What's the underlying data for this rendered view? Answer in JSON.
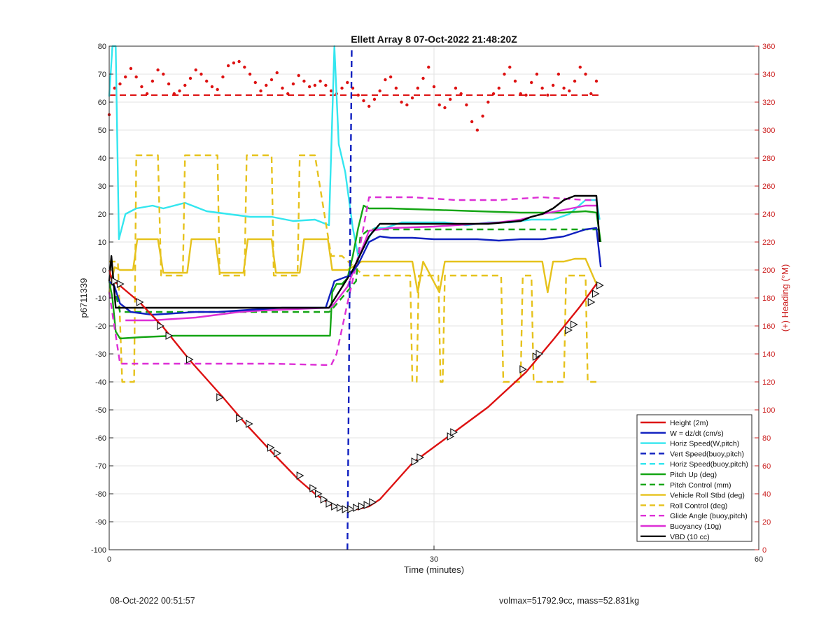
{
  "figure": {
    "footer_left": "08-Oct-2022 00:51:57",
    "footer_right": "volmax=51792.9cc, mass=52.831kg"
  },
  "chart_data": {
    "type": "line",
    "title": "Ellett Array 8 07-Oct-2022 21:48:20Z",
    "xlabel": "Time (minutes)",
    "ylabel": "p6711339",
    "y2label": "(+) Heading (°M)",
    "xlim": [
      0,
      60
    ],
    "ylim": [
      -100,
      80
    ],
    "y2lim": [
      0,
      360
    ],
    "xticks": [
      0,
      30,
      60
    ],
    "yticks": [
      -100,
      -90,
      -80,
      -70,
      -60,
      -50,
      -40,
      -30,
      -20,
      -10,
      0,
      10,
      20,
      30,
      40,
      50,
      60,
      70,
      80
    ],
    "y2ticks": [
      0,
      20,
      40,
      60,
      80,
      100,
      120,
      140,
      160,
      180,
      200,
      220,
      240,
      260,
      280,
      300,
      320,
      340,
      360
    ],
    "grid": true,
    "legend_position": "bottom-right",
    "colors": {
      "red": "#dd1111",
      "blue": "#1020c0",
      "cyan": "#33e6ef",
      "green": "#14a514",
      "gold": "#e6c21c",
      "magenta": "#dd2fd6",
      "black": "#000000",
      "axis_right": "#cc2222"
    },
    "series": [
      {
        "name": "Height (2m)",
        "color": "#dd1111",
        "style": "solid",
        "x": [
          0,
          0.3,
          0.8,
          2.8,
          5,
          7.5,
          10.5,
          12.6,
          15,
          17.5,
          19,
          20.5,
          22,
          23,
          24,
          25,
          28,
          31.5,
          35,
          38.5,
          41,
          43.5,
          45
        ],
        "y": [
          0,
          -4,
          -5,
          -11.5,
          -20.5,
          -32.5,
          -45.5,
          -55,
          -65,
          -75,
          -80,
          -84,
          -85.5,
          -85.5,
          -84.5,
          -82,
          -69,
          -59,
          -49,
          -36.5,
          -25,
          -13,
          -5
        ]
      },
      {
        "name": "W = dz/dt (cm/s)",
        "color": "#1020c0",
        "style": "solid",
        "x": [
          0,
          0.5,
          1,
          2,
          4,
          6,
          8,
          10,
          12,
          14,
          16,
          18,
          20,
          20.8,
          21.5,
          22.2,
          23,
          24,
          25,
          26,
          28,
          30,
          32,
          34,
          36,
          38,
          40,
          42,
          44,
          45,
          45.4
        ],
        "y": [
          -4,
          -6,
          -12,
          -15,
          -16,
          -15.5,
          -15,
          -15,
          -14.5,
          -14,
          -13.5,
          -13.5,
          -13.5,
          -4,
          -3,
          -2,
          2,
          10,
          12,
          11.5,
          11.5,
          11,
          11,
          11,
          10.5,
          11,
          11,
          12,
          14.5,
          15,
          1
        ]
      },
      {
        "name": "Horiz Speed(W,pitch)",
        "color": "#33e6ef",
        "style": "solid",
        "x": [
          0,
          0.3,
          0.6,
          0.9,
          1.5,
          2.5,
          4,
          5,
          6,
          7,
          9,
          11,
          13,
          15,
          17,
          19,
          20.3,
          20.8,
          21.2,
          21.8,
          22.5,
          23,
          23.5,
          24.5,
          25.5,
          27,
          29,
          31,
          33,
          35,
          37,
          39,
          41,
          42.5,
          44,
          45,
          45.3
        ],
        "y": [
          62,
          80,
          80,
          11,
          20,
          22,
          23,
          22,
          23,
          24,
          21,
          20,
          19,
          19,
          17.5,
          18,
          16,
          80,
          45,
          35,
          15,
          5,
          8,
          15,
          15,
          17,
          17,
          17,
          16,
          17,
          17,
          18,
          18,
          20,
          25,
          25,
          18
        ]
      },
      {
        "name": "Vert Speed(buoy,pitch)",
        "color": "#1020c0",
        "style": "dashed",
        "x": [
          22,
          22.4
        ],
        "y": [
          -100,
          80
        ]
      },
      {
        "name": "Horiz Speed(buoy,pitch)",
        "color": "#33e6ef",
        "style": "dashed",
        "x": [],
        "y": []
      },
      {
        "name": "Pitch Up (deg)",
        "color": "#14a514",
        "style": "solid",
        "x": [
          0,
          0.3,
          0.6,
          1,
          3,
          6,
          10,
          14,
          18,
          20.4,
          20.6,
          21,
          21.5,
          22,
          22.5,
          23,
          23.5,
          24,
          26,
          30,
          34,
          38,
          42,
          44,
          45,
          45.4
        ],
        "y": [
          -4,
          -10,
          -22,
          -24.5,
          -24,
          -23.5,
          -23.5,
          -23.5,
          -23.5,
          -23.5,
          -8,
          -5,
          -5,
          -3,
          5,
          15,
          23,
          22,
          22,
          21.5,
          21,
          20.5,
          20.5,
          21,
          20.5,
          10
        ]
      },
      {
        "name": "Pitch Control (mm)",
        "color": "#14a514",
        "style": "dashed",
        "x": [
          0.2,
          1,
          20.3,
          20.6,
          22.8,
          23.2,
          24,
          45.2
        ],
        "y": [
          -2,
          -15,
          -15,
          -14,
          -4,
          12,
          14.5,
          14.5
        ]
      },
      {
        "name": "Vehicle Roll Stbd (deg)",
        "color": "#e6c21c",
        "style": "solid",
        "x": [
          0,
          0.5,
          1,
          2.2,
          2.6,
          4.5,
          5,
          7.2,
          7.6,
          9.8,
          10.2,
          12.4,
          12.8,
          15,
          15.4,
          17.6,
          18,
          20.2,
          20.6,
          22,
          23.3,
          24,
          28,
          28.5,
          29,
          30.5,
          31,
          40,
          40.5,
          41,
          42,
          43,
          44,
          45
        ],
        "y": [
          -8,
          1,
          0,
          0,
          11,
          11,
          -1,
          -1,
          11,
          11,
          -1,
          -1,
          11,
          11,
          -1,
          -1,
          11,
          11,
          0,
          0,
          3,
          3,
          3,
          -8,
          3,
          -8,
          3,
          3,
          -8,
          3,
          3,
          4,
          4,
          -5
        ]
      },
      {
        "name": "Roll Control (deg)",
        "color": "#e6c21c",
        "style": "dashed",
        "x": [
          0,
          0.8,
          1.2,
          2.3,
          2.5,
          4.5,
          4.8,
          6.8,
          7,
          10,
          10.2,
          12.5,
          12.7,
          15,
          15.2,
          17.4,
          17.6,
          19,
          20.5,
          21.5,
          23.5,
          24,
          27.8,
          28,
          28.4,
          28.6,
          30.4,
          30.6,
          30.8,
          31,
          36.2,
          36.4,
          38,
          38.2,
          39,
          39.2,
          42,
          42.2,
          44,
          44.2,
          45
        ],
        "y": [
          3,
          3,
          -40,
          -40,
          41,
          41,
          -2,
          -2,
          41,
          41,
          -2,
          -2,
          41,
          41,
          -2,
          -2,
          41,
          41,
          5,
          5,
          -2,
          -2,
          -2,
          -40,
          -40,
          -2,
          -2,
          -40,
          -40,
          -2,
          -2,
          -40,
          -40,
          -2,
          -2,
          -40,
          -40,
          -2,
          -2,
          -40,
          -40
        ]
      },
      {
        "name": "Glide Angle (buoy,pitch)",
        "color": "#dd2fd6",
        "style": "dashed",
        "x": [
          0,
          1,
          5,
          10,
          15,
          20.5,
          21,
          22,
          23,
          24,
          28,
          32,
          36,
          40,
          44,
          45
        ],
        "y": [
          -8,
          -33.5,
          -33.5,
          -33.5,
          -33.5,
          -34,
          -30,
          -12,
          5,
          26,
          26,
          25,
          25,
          26,
          25,
          25
        ]
      },
      {
        "name": "Buoyancy (10g)",
        "color": "#dd2fd6",
        "style": "solid",
        "x": [
          1.5,
          4,
          6,
          8,
          10,
          12,
          14,
          17,
          20.3,
          20.6,
          22,
          23,
          24,
          26,
          30,
          34,
          36,
          38,
          40,
          42,
          44,
          45
        ],
        "y": [
          -18,
          -18,
          -17.5,
          -17,
          -16,
          -15,
          -14.5,
          -14,
          -13.5,
          -13,
          -6,
          4,
          14,
          15,
          15.5,
          16.5,
          17,
          18,
          20,
          21.5,
          23,
          23
        ]
      },
      {
        "name": "VBD (10 cc)",
        "color": "#000000",
        "style": "solid",
        "x": [
          0,
          0.2,
          0.6,
          20.3,
          22.5,
          24,
          25,
          35,
          38,
          39,
          40,
          41,
          42,
          43,
          45,
          45.3
        ],
        "y": [
          -4,
          5,
          -13.5,
          -13.5,
          0,
          12,
          16.5,
          16.5,
          17.5,
          19,
          20,
          22,
          25,
          26.5,
          26.5,
          10
        ]
      }
    ],
    "heading_series": {
      "name": "heading",
      "axis": "right",
      "color": "#dd1111",
      "style": "dots",
      "mean": 325,
      "x": [
        0,
        0.5,
        1,
        1.5,
        2,
        2.5,
        3,
        3.5,
        4,
        4.5,
        5,
        5.5,
        6,
        6.5,
        7,
        7.5,
        8,
        8.5,
        9,
        9.5,
        10,
        10.5,
        11,
        11.5,
        12,
        12.5,
        13,
        13.5,
        14,
        14.5,
        15,
        15.5,
        16,
        16.5,
        17,
        17.5,
        18,
        18.5,
        19,
        19.5,
        20,
        20.5,
        21,
        21.5,
        22,
        22.5,
        23,
        23.5,
        24,
        24.5,
        25,
        25.5,
        26,
        26.5,
        27,
        27.5,
        28,
        28.5,
        29,
        29.5,
        30,
        30.5,
        31,
        31.5,
        32,
        32.5,
        33,
        33.5,
        34,
        34.5,
        35,
        35.5,
        36,
        36.5,
        37,
        37.5,
        38,
        38.5,
        39,
        39.5,
        40,
        40.5,
        41,
        41.5,
        42,
        42.5,
        43,
        43.5,
        44,
        44.5,
        45
      ],
      "y": [
        311,
        330,
        333,
        338,
        344,
        338,
        331,
        326,
        335,
        343,
        340,
        333,
        326,
        328,
        332,
        337,
        343,
        340,
        335,
        331,
        329,
        338,
        346,
        348,
        349,
        345,
        340,
        334,
        328,
        332,
        336,
        341,
        330,
        326,
        333,
        339,
        335,
        331,
        332,
        335,
        332,
        328,
        326,
        330,
        334,
        330,
        325,
        321,
        317,
        322,
        328,
        336,
        338,
        330,
        320,
        318,
        323,
        330,
        337,
        345,
        331,
        318,
        316,
        322,
        330,
        326,
        318,
        306,
        300,
        310,
        320,
        326,
        330,
        340,
        345,
        335,
        326,
        325,
        334,
        340,
        330,
        325,
        332,
        340,
        330,
        328,
        335,
        345,
        340,
        326,
        335
      ]
    },
    "markers": {
      "symbol": "triangle",
      "x": [
        0.5,
        1,
        2.8,
        4.7,
        5.5,
        7.4,
        10.2,
        12,
        12.9,
        14.9,
        15.5,
        17.6,
        18.8,
        19.3,
        19.8,
        20.3,
        20.8,
        21.3,
        21.8,
        22.3,
        22.8,
        23.3,
        23.8,
        24.3,
        28.2,
        28.7,
        31.5,
        31.8,
        38.2,
        39.4,
        39.7,
        42.4,
        42.9,
        44.5,
        44.9,
        45.3
      ],
      "y": [
        -4,
        -5,
        -11.5,
        -20,
        -23.5,
        -32,
        -45.5,
        -53,
        -55,
        -63.5,
        -65.5,
        -73.5,
        -78,
        -80,
        -82,
        -83.5,
        -84.5,
        -85,
        -85.5,
        -85.5,
        -85,
        -84.5,
        -84,
        -83,
        -68.5,
        -67,
        -59.5,
        -58,
        -35.5,
        -31,
        -30,
        -21.5,
        -19.5,
        -11.5,
        -8.5,
        -5.5
      ]
    }
  }
}
